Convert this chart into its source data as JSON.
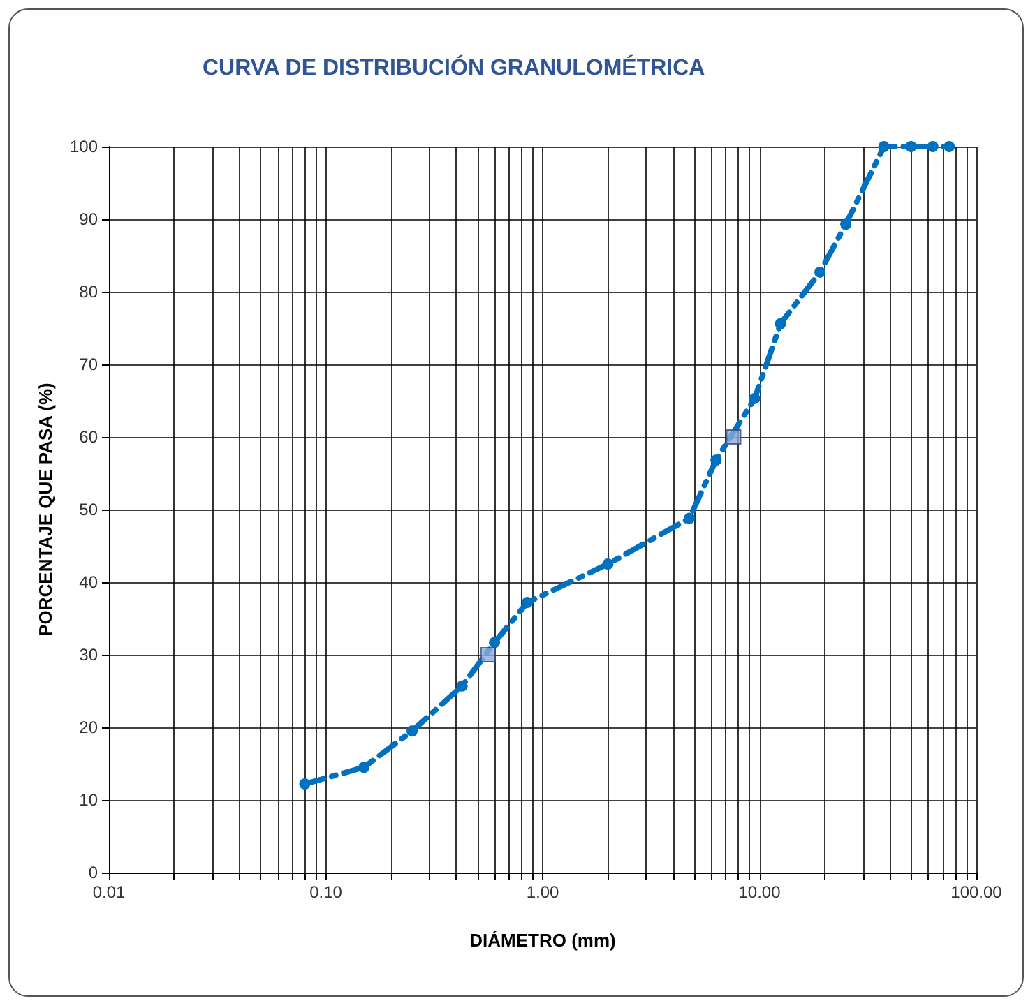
{
  "chart_data": {
    "type": "line",
    "title": "CURVA DE DISTRIBUCIÓN GRANULOMÉTRICA",
    "xlabel": "DIÁMETRO (mm)",
    "ylabel": "PORCENTAJE QUE PASA (%)",
    "log": "x",
    "grid": true,
    "xlim": [
      0.01,
      100
    ],
    "ylim": [
      0,
      100
    ],
    "xticks": [
      {
        "value": 0.01,
        "label": "0.01"
      },
      {
        "value": 0.02,
        "label": null
      },
      {
        "value": 0.03,
        "label": null
      },
      {
        "value": 0.04,
        "label": null
      },
      {
        "value": 0.05,
        "label": null
      },
      {
        "value": 0.06,
        "label": null
      },
      {
        "value": 0.07,
        "label": null
      },
      {
        "value": 0.08,
        "label": null
      },
      {
        "value": 0.09,
        "label": null
      },
      {
        "value": 0.1,
        "label": "0.10"
      },
      {
        "value": 0.2,
        "label": null
      },
      {
        "value": 0.3,
        "label": null
      },
      {
        "value": 0.4,
        "label": null
      },
      {
        "value": 0.5,
        "label": null
      },
      {
        "value": 0.6,
        "label": null
      },
      {
        "value": 0.7,
        "label": null
      },
      {
        "value": 0.8,
        "label": null
      },
      {
        "value": 0.9,
        "label": null
      },
      {
        "value": 1,
        "label": "1.00"
      },
      {
        "value": 2,
        "label": null
      },
      {
        "value": 3,
        "label": null
      },
      {
        "value": 4,
        "label": null
      },
      {
        "value": 5,
        "label": null
      },
      {
        "value": 6,
        "label": null
      },
      {
        "value": 7,
        "label": null
      },
      {
        "value": 8,
        "label": null
      },
      {
        "value": 9,
        "label": null
      },
      {
        "value": 10,
        "label": "10.00"
      },
      {
        "value": 20,
        "label": null
      },
      {
        "value": 30,
        "label": null
      },
      {
        "value": 40,
        "label": null
      },
      {
        "value": 50,
        "label": null
      },
      {
        "value": 60,
        "label": null
      },
      {
        "value": 70,
        "label": null
      },
      {
        "value": 80,
        "label": null
      },
      {
        "value": 90,
        "label": null
      },
      {
        "value": 100,
        "label": "100.00"
      }
    ],
    "yticks": [
      0,
      10,
      20,
      30,
      40,
      50,
      60,
      70,
      80,
      90,
      100
    ],
    "series": [
      {
        "color": "#0070c0",
        "marker": "circle",
        "line_style": "dashed",
        "x": [
          0.08,
          0.15,
          0.25,
          0.425,
          0.6,
          0.85,
          2.0,
          4.75,
          6.3,
          9.5,
          12.5,
          19,
          25,
          37.5,
          50,
          63,
          75
        ],
        "values": [
          12.2,
          14.5,
          19.5,
          25.7,
          31.7,
          37.2,
          42.5,
          48.8,
          56.8,
          65.3,
          75.6,
          82.7,
          89.3,
          100,
          100,
          100,
          100
        ]
      },
      {
        "type": "scatter",
        "color": "#8eaadb",
        "marker": "square",
        "x": [
          0.56,
          7.6
        ],
        "values": [
          30,
          60
        ]
      }
    ]
  }
}
